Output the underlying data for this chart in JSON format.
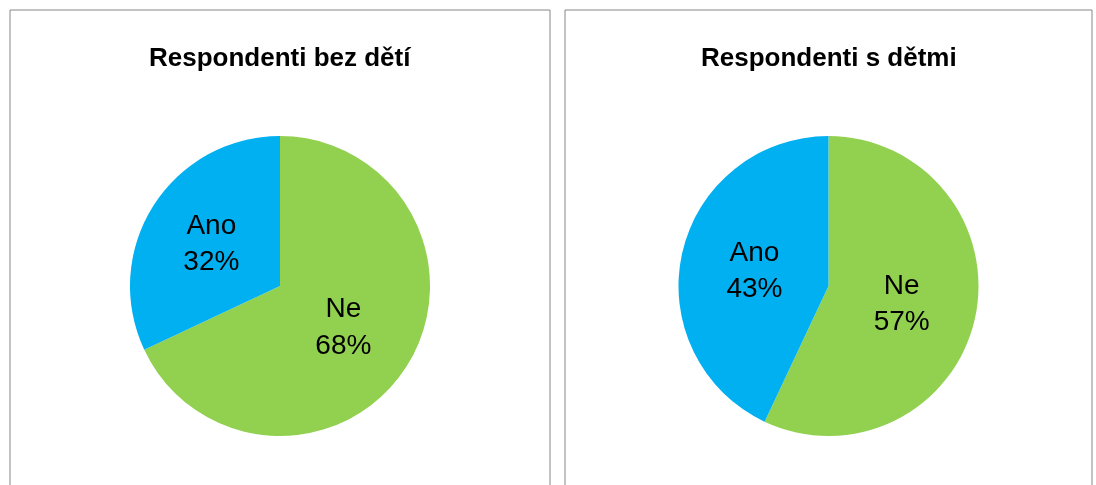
{
  "chart_data": [
    {
      "type": "pie",
      "title": "Respondenti bez dětí",
      "categories": [
        "Ne",
        "Ano"
      ],
      "values": [
        68,
        32
      ],
      "value_labels": [
        "68%",
        "32%"
      ],
      "colors": [
        "#92d050",
        "#00b0f0"
      ]
    },
    {
      "type": "pie",
      "title": "Respondenti s dětmi",
      "categories": [
        "Ne",
        "Ano"
      ],
      "values": [
        57,
        43
      ],
      "value_labels": [
        "57%",
        "43%"
      ],
      "colors": [
        "#92d050",
        "#00b0f0"
      ]
    }
  ]
}
